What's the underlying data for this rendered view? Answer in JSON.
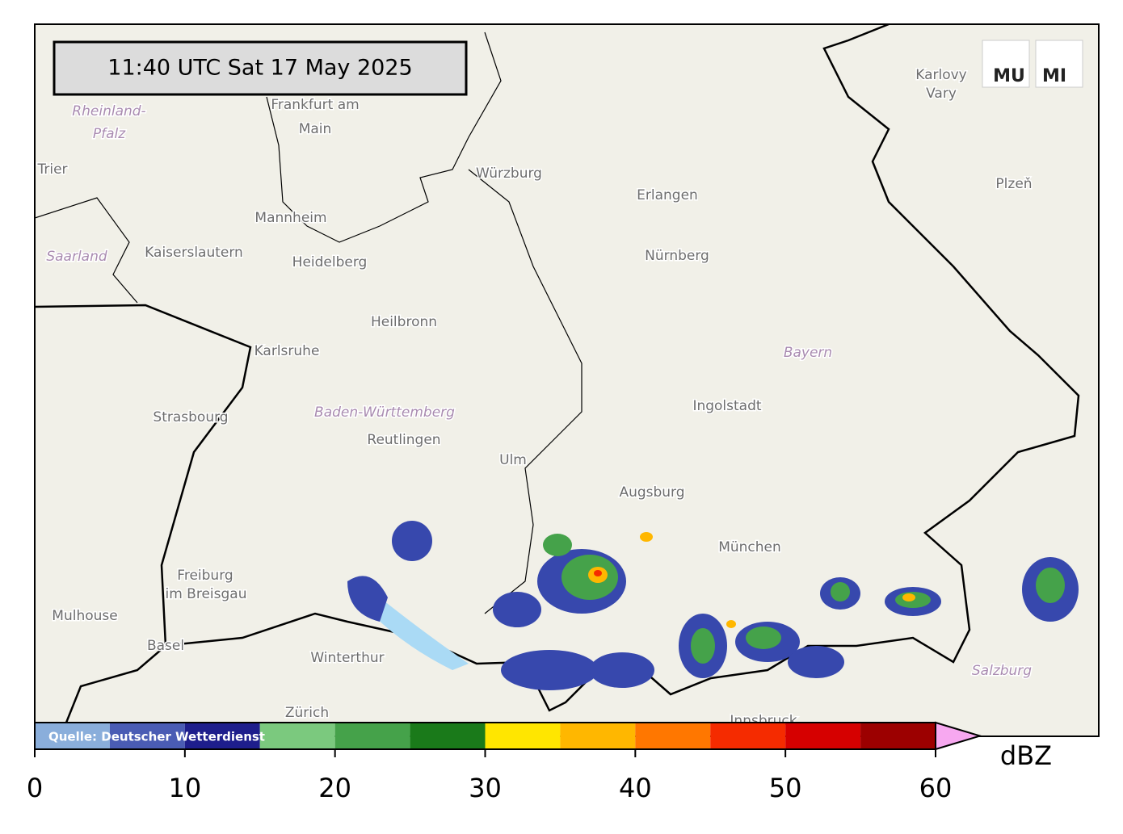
{
  "header": {
    "timestamp": "11:40 UTC  Sat 17 May 2025"
  },
  "logo": [
    "MU",
    "MI"
  ],
  "source": "Quelle: Deutscher Wetterdienst",
  "places": [
    "Frankfurt am",
    "Main",
    "Würzburg",
    "Erlangen",
    "Nürnberg",
    "Mannheim",
    "Kaiserslautern",
    "Heidelberg",
    "Heilbronn",
    "Karlsruhe",
    "Strasbourg",
    "Baden-Württemberg",
    "Reutlingen",
    "Ulm",
    "Augsburg",
    "Ingolstadt",
    "Bayern",
    "München",
    "Freiburg",
    "im Breisgau",
    "Mulhouse",
    "Basel",
    "Winterthur",
    "Zürich",
    "Innsbruck",
    "Salzburg",
    "Karlovy",
    "Vary",
    "Plzeň",
    "Rheinland-",
    "Pfalz",
    "Saarland",
    "Trier"
  ],
  "colorbar": {
    "unit": "dBZ",
    "lim": [
      0,
      60
    ],
    "ticks": [
      0,
      10,
      20,
      30,
      40,
      50,
      60
    ],
    "bounds": [
      0,
      5,
      10,
      15,
      20,
      25,
      30,
      35,
      40,
      45,
      50,
      55,
      60
    ],
    "colors": [
      "#8aaedb",
      "#4a5cb4",
      "#1e1e8c",
      "#7bc97e",
      "#45a24a",
      "#1a7a1a",
      "#ffe600",
      "#ffb700",
      "#ff7700",
      "#f52b00",
      "#d60000",
      "#9c0000"
    ],
    "extend_color": "#f7a8f0"
  }
}
